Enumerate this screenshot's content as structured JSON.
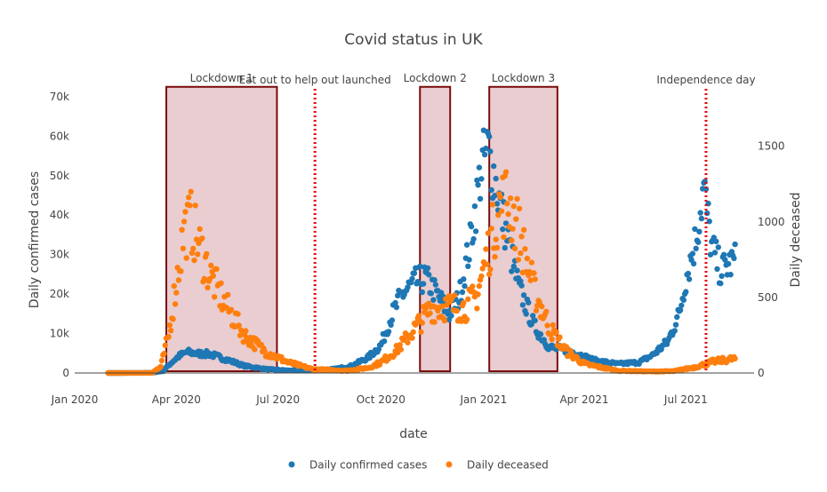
{
  "chart_data": {
    "type": "scatter",
    "title": "Covid status in UK",
    "xlabel": "date",
    "ylabel": "Daily confirmed cases",
    "y2label": "Daily deceased",
    "x_range": [
      "2020-01-01",
      "2021-08-31"
    ],
    "x_ticks": [
      {
        "date": "2020-01-01",
        "label": "Jan 2020"
      },
      {
        "date": "2020-04-01",
        "label": "Apr 2020"
      },
      {
        "date": "2020-07-01",
        "label": "Jul 2020"
      },
      {
        "date": "2020-10-01",
        "label": "Oct 2020"
      },
      {
        "date": "2021-01-01",
        "label": "Jan 2021"
      },
      {
        "date": "2021-04-01",
        "label": "Apr 2021"
      },
      {
        "date": "2021-07-01",
        "label": "Jul 2021"
      }
    ],
    "y_range": [
      0,
      72000
    ],
    "y_ticks": [
      {
        "value": 0,
        "label": "0"
      },
      {
        "value": 10000,
        "label": "10k"
      },
      {
        "value": 20000,
        "label": "20k"
      },
      {
        "value": 30000,
        "label": "30k"
      },
      {
        "value": 40000,
        "label": "40k"
      },
      {
        "value": 50000,
        "label": "50k"
      },
      {
        "value": 60000,
        "label": "60k"
      },
      {
        "value": 70000,
        "label": "70k"
      }
    ],
    "y2_range": [
      0,
      1880
    ],
    "y2_ticks": [
      {
        "value": 0,
        "label": "0"
      },
      {
        "value": 500,
        "label": "500"
      },
      {
        "value": 1000,
        "label": "1000"
      },
      {
        "value": 1500,
        "label": "1500"
      }
    ],
    "grid": false,
    "legend_position": "bottom-center",
    "colors": {
      "cases": "#1f77b4",
      "deceased": "#ff7f0e",
      "band_fill": "#c9838a",
      "band_stroke": "#7a0c0c",
      "event_line": "#e8000b"
    },
    "series": [
      {
        "name": "Daily confirmed cases",
        "axis": "y",
        "anchors": [
          [
            "2020-01-31",
            0
          ],
          [
            "2020-02-28",
            20
          ],
          [
            "2020-03-10",
            60
          ],
          [
            "2020-03-20",
            500
          ],
          [
            "2020-03-27",
            2500
          ],
          [
            "2020-04-03",
            4200
          ],
          [
            "2020-04-10",
            5300
          ],
          [
            "2020-04-20",
            4900
          ],
          [
            "2020-05-01",
            4800
          ],
          [
            "2020-05-15",
            3500
          ],
          [
            "2020-06-01",
            1800
          ],
          [
            "2020-06-20",
            1000
          ],
          [
            "2020-07-10",
            650
          ],
          [
            "2020-08-01",
            750
          ],
          [
            "2020-08-20",
            1000
          ],
          [
            "2020-09-05",
            1800
          ],
          [
            "2020-09-20",
            4000
          ],
          [
            "2020-10-01",
            7000
          ],
          [
            "2020-10-10",
            14000
          ],
          [
            "2020-10-20",
            20000
          ],
          [
            "2020-11-01",
            23000
          ],
          [
            "2020-11-10",
            24000
          ],
          [
            "2020-11-20",
            20000
          ],
          [
            "2020-12-01",
            15000
          ],
          [
            "2020-12-10",
            19000
          ],
          [
            "2020-12-20",
            33000
          ],
          [
            "2020-12-30",
            52000
          ],
          [
            "2021-01-05",
            57000
          ],
          [
            "2021-01-12",
            48000
          ],
          [
            "2021-01-20",
            37000
          ],
          [
            "2021-02-01",
            22000
          ],
          [
            "2021-02-15",
            12000
          ],
          [
            "2021-03-01",
            6500
          ],
          [
            "2021-03-20",
            5500
          ],
          [
            "2021-04-10",
            3200
          ],
          [
            "2021-05-01",
            2300
          ],
          [
            "2021-05-20",
            2700
          ],
          [
            "2021-06-01",
            4500
          ],
          [
            "2021-06-15",
            8000
          ],
          [
            "2021-06-25",
            15000
          ],
          [
            "2021-07-01",
            24000
          ],
          [
            "2021-07-10",
            34000
          ],
          [
            "2021-07-17",
            47000
          ],
          [
            "2021-07-24",
            32000
          ],
          [
            "2021-08-01",
            26000
          ],
          [
            "2021-08-14",
            28500
          ]
        ]
      },
      {
        "name": "Daily deceased",
        "axis": "y2",
        "anchors": [
          [
            "2020-01-31",
            0
          ],
          [
            "2020-03-10",
            1
          ],
          [
            "2020-03-18",
            40
          ],
          [
            "2020-03-25",
            250
          ],
          [
            "2020-04-01",
            600
          ],
          [
            "2020-04-08",
            950
          ],
          [
            "2020-04-14",
            1000
          ],
          [
            "2020-04-21",
            850
          ],
          [
            "2020-05-01",
            650
          ],
          [
            "2020-05-15",
            450
          ],
          [
            "2020-06-01",
            250
          ],
          [
            "2020-06-20",
            140
          ],
          [
            "2020-07-10",
            70
          ],
          [
            "2020-08-01",
            25
          ],
          [
            "2020-09-01",
            15
          ],
          [
            "2020-09-20",
            35
          ],
          [
            "2020-10-01",
            70
          ],
          [
            "2020-10-15",
            150
          ],
          [
            "2020-11-01",
            300
          ],
          [
            "2020-11-15",
            430
          ],
          [
            "2020-12-01",
            440
          ],
          [
            "2020-12-15",
            430
          ],
          [
            "2020-12-25",
            500
          ],
          [
            "2021-01-05",
            800
          ],
          [
            "2021-01-15",
            1100
          ],
          [
            "2021-01-22",
            1150
          ],
          [
            "2021-02-01",
            950
          ],
          [
            "2021-02-15",
            550
          ],
          [
            "2021-03-01",
            300
          ],
          [
            "2021-03-15",
            150
          ],
          [
            "2021-04-01",
            60
          ],
          [
            "2021-05-01",
            15
          ],
          [
            "2021-06-01",
            10
          ],
          [
            "2021-06-20",
            12
          ],
          [
            "2021-07-10",
            40
          ],
          [
            "2021-07-25",
            75
          ],
          [
            "2021-08-14",
            95
          ]
        ]
      }
    ],
    "shapes": [
      {
        "kind": "band",
        "start": "2020-03-23",
        "end": "2020-06-30",
        "top": 72500,
        "label": "Lockdown 1"
      },
      {
        "kind": "band",
        "start": "2020-11-05",
        "end": "2020-12-02",
        "top": 72500,
        "label": "Lockdown 2"
      },
      {
        "kind": "band",
        "start": "2021-01-06",
        "end": "2021-03-08",
        "top": 72500,
        "label": "Lockdown 3"
      },
      {
        "kind": "vline",
        "date": "2020-08-03",
        "label": "Eat out to help out launched"
      },
      {
        "kind": "vline",
        "date": "2021-07-19",
        "label": "Independence day"
      }
    ]
  }
}
